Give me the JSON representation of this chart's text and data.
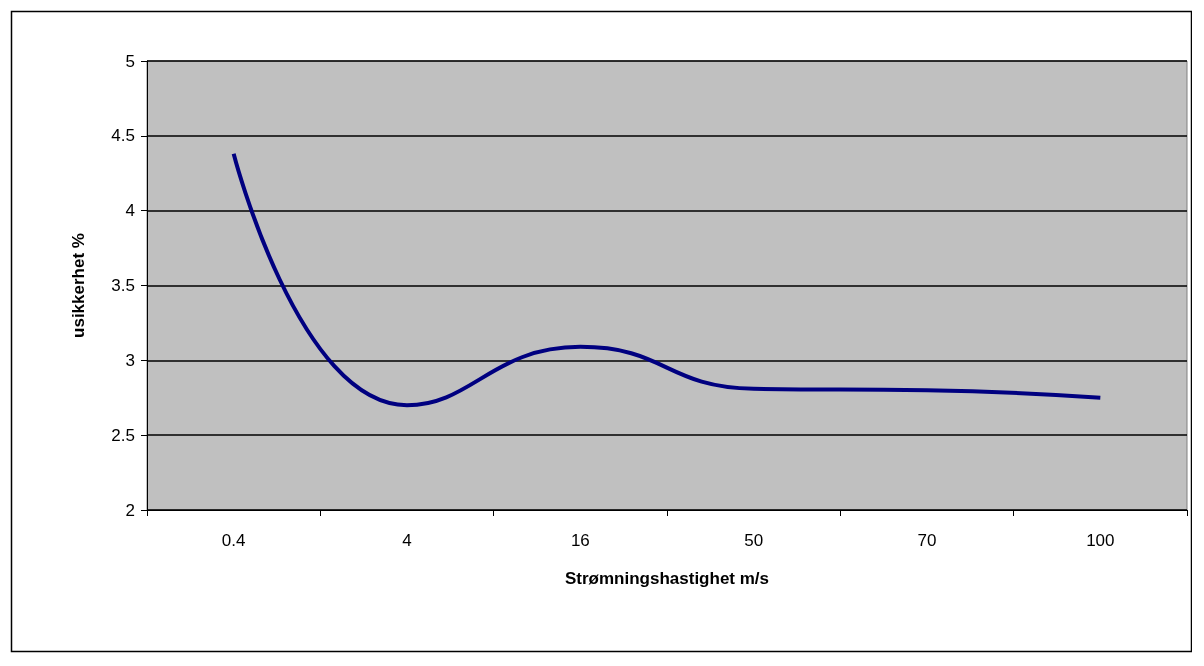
{
  "chart_data": {
    "type": "line",
    "xlabel": "Strømningshastighet m/s",
    "ylabel": "usikkerhet %",
    "categories": [
      "0.4",
      "4",
      "16",
      "50",
      "70",
      "100"
    ],
    "series": [
      {
        "color": "#000080",
        "values": [
          4.38,
          2.7,
          3.09,
          2.81,
          2.8,
          2.75
        ]
      }
    ],
    "ylim": [
      2,
      5
    ],
    "yticks": [
      2,
      2.5,
      3,
      3.5,
      4,
      4.5,
      5
    ],
    "grid": "y",
    "marker": "none",
    "line_style": "solid"
  }
}
